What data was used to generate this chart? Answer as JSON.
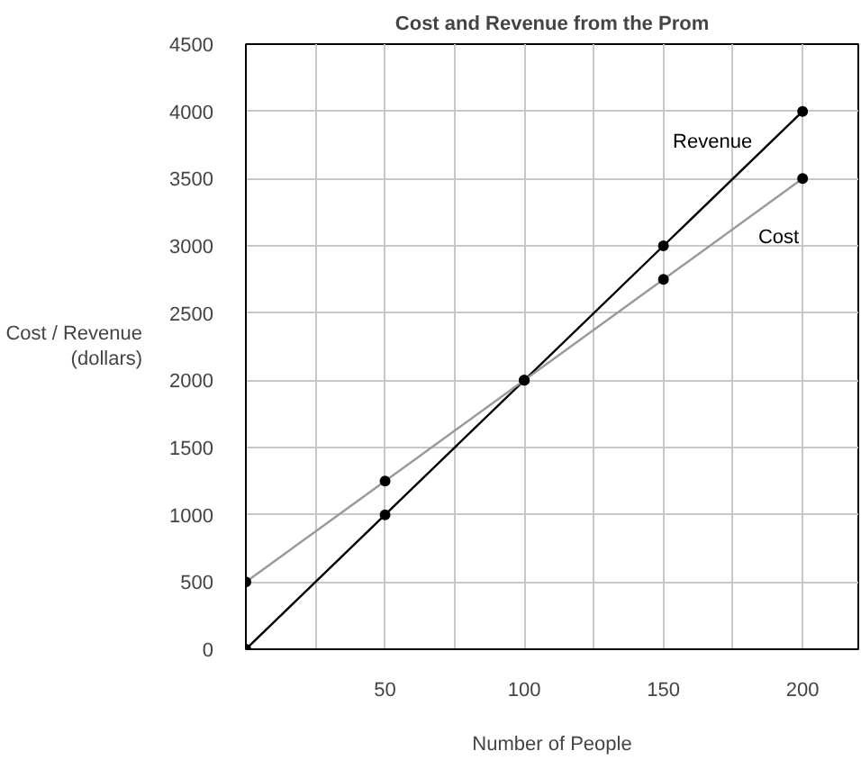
{
  "chart_data": {
    "type": "line",
    "title": "Cost and Revenue from the Prom",
    "xlabel": "Number of People",
    "ylabel": "Cost / Revenue\n(dollars)",
    "x": [
      0,
      50,
      100,
      150,
      200
    ],
    "series": [
      {
        "name": "Revenue",
        "color": "#000000",
        "values": [
          0,
          1000,
          2000,
          3000,
          4000
        ]
      },
      {
        "name": "Cost",
        "color": "#999999",
        "values": [
          500,
          1250,
          2000,
          2750,
          3500
        ]
      }
    ],
    "xlim": [
      0,
      220
    ],
    "ylim": [
      0,
      4500
    ],
    "xticks": [
      {
        "value": 0,
        "label": null
      },
      {
        "value": 25,
        "label": null
      },
      50,
      {
        "value": 75,
        "label": null
      },
      100,
      {
        "value": 125,
        "label": null
      },
      150,
      {
        "value": 175,
        "label": null
      },
      200
    ],
    "yticks": [
      0,
      500,
      1000,
      1500,
      2000,
      2500,
      3000,
      3500,
      4000,
      4500
    ],
    "grid": true,
    "marker": "circle",
    "line_style": "solid"
  }
}
